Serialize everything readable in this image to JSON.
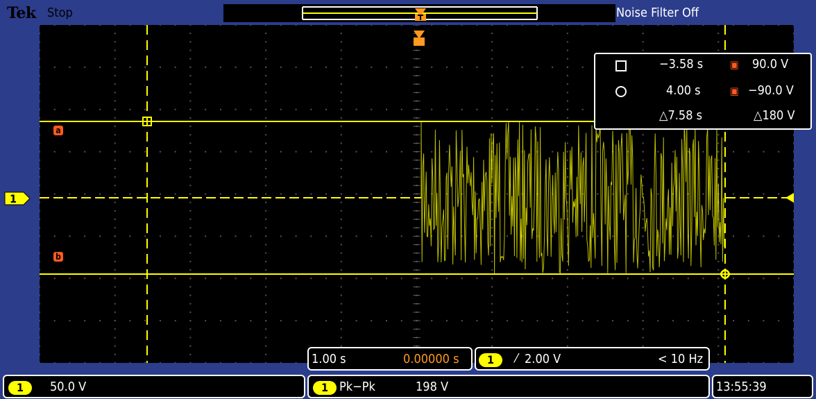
{
  "header": {
    "brand": "Tek",
    "run_state": "Stop",
    "noise_filter": "Noise Filter Off"
  },
  "channel": {
    "number": "1",
    "scale": "50.0 V"
  },
  "cursors": {
    "a_label": "a",
    "b_label": "b",
    "cursor1_time": "−3.58 s",
    "cursor1_volt": "90.0 V",
    "cursor2_time": "4.00 s",
    "cursor2_volt": "−90.0 V",
    "delta_time": "△7.58 s",
    "delta_volt": "△180 V"
  },
  "horizontal": {
    "timebase": "1.00 s",
    "position": "0.00000 s"
  },
  "trigger": {
    "level": "2.00 V",
    "frequency": "< 10 Hz"
  },
  "measurement": {
    "type": "Pk−Pk",
    "value": "198 V"
  },
  "clock": {
    "time": "13:55:39"
  },
  "colors": {
    "trace": "#ffff00",
    "cursor_marker": "#ff5a1e",
    "trigger_marker": "#ff9a1e",
    "frame": "#2c3d8c"
  }
}
